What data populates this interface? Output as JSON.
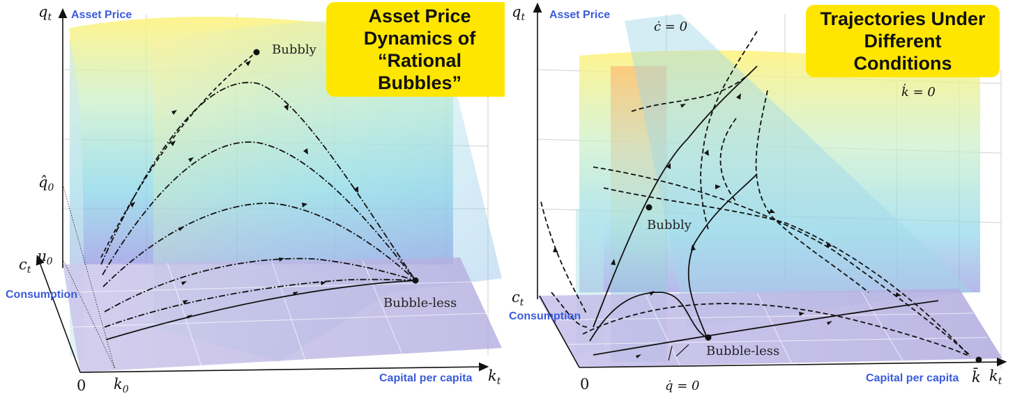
{
  "left_panel": {
    "annotations": {
      "asset_price": "Asset Price",
      "consumption": "Consumption",
      "capital": "Capital per capita"
    },
    "title_lines": [
      "Asset Price",
      "Dynamics of",
      "“Rational Bubbles”"
    ],
    "axes": {
      "y": "q",
      "y_sub": "t",
      "z": "c",
      "z_sub": "t",
      "x": "k",
      "x_sub": "t"
    },
    "ticks": {
      "q_hat": "q̂",
      "q_hat_sub": "0",
      "mu": "μ",
      "mu_sub": "0",
      "origin": "0",
      "k0": "k",
      "k0_sub": "0"
    },
    "points": {
      "bubbly": "Bubbly",
      "bubble_less": "Bubble-less"
    }
  },
  "right_panel": {
    "annotations": {
      "asset_price": "Asset Price",
      "consumption": "Consumption",
      "capital": "Capital per capita"
    },
    "title_lines": [
      "Trajectories Under",
      "Different Conditions"
    ],
    "axes": {
      "y": "q",
      "y_sub": "t",
      "z": "c",
      "z_sub": "t",
      "x": "k",
      "x_sub": "t"
    },
    "ticks": {
      "origin": "0",
      "k_bar": "k̄"
    },
    "loci": {
      "c_dot": "ċ = 0",
      "k_dot": "k̇ = 0",
      "q_dot": "q̇ = 0"
    },
    "points": {
      "bubbly": "Bubbly",
      "bubble_less": "Bubble-less"
    }
  },
  "colors": {
    "badge": "#ffe600",
    "annotation": "#3b5bdb",
    "floor": "#b8b3e0",
    "curve": "#111111"
  }
}
